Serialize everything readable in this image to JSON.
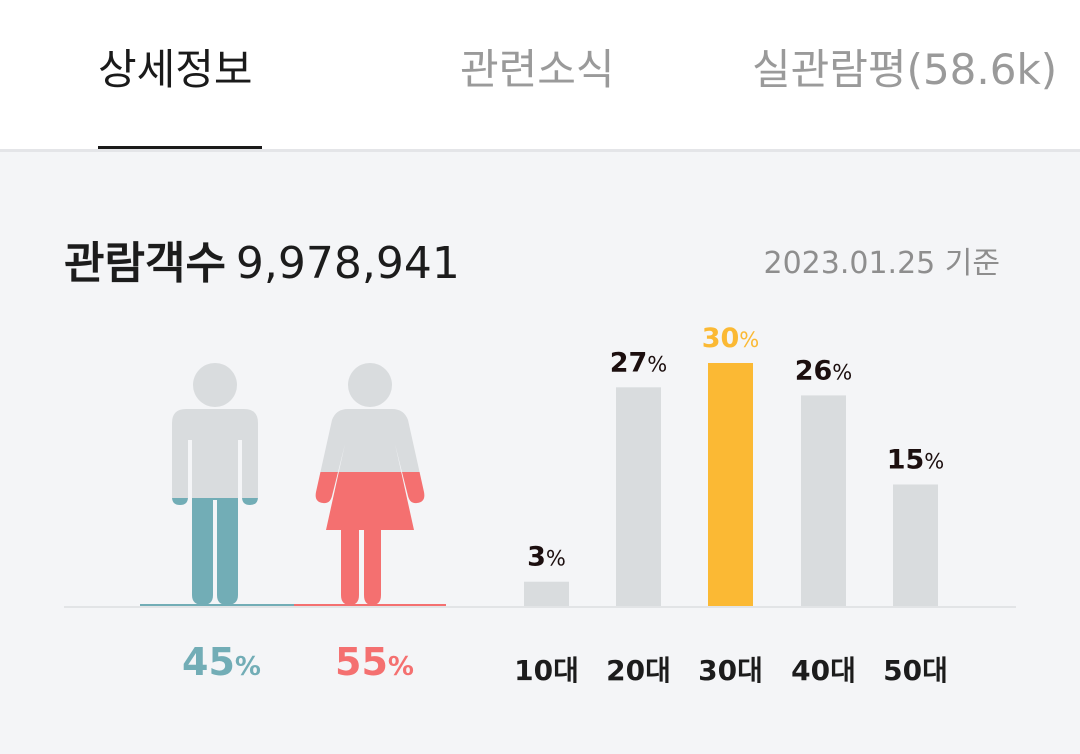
{
  "tabs": [
    {
      "label": "상세정보",
      "active": true
    },
    {
      "label": "관련소식",
      "active": false
    },
    {
      "label": "실관람평(58.6k)",
      "active": false
    }
  ],
  "summary": {
    "audience_label": "관람객수",
    "audience_count": "9,978,941",
    "as_of_date": "2023.01.25 기준"
  },
  "colors": {
    "male": "#72adb6",
    "female": "#f47070",
    "neutral": "#d9dcde",
    "highlight": "#fbb934",
    "label_dark": "#1c0f0f"
  },
  "chart_data": [
    {
      "type": "pictogram",
      "categories": [
        "male",
        "female"
      ],
      "values": [
        45,
        55
      ],
      "labels": [
        "45%",
        "55%"
      ]
    },
    {
      "type": "bar",
      "categories": [
        "10대",
        "20대",
        "30대",
        "40대",
        "50대"
      ],
      "values": [
        3,
        27,
        30,
        26,
        15
      ],
      "value_labels": [
        "3%",
        "27%",
        "30%",
        "26%",
        "15%"
      ],
      "highlight_index": 2,
      "ylim": [
        0,
        30
      ]
    }
  ]
}
